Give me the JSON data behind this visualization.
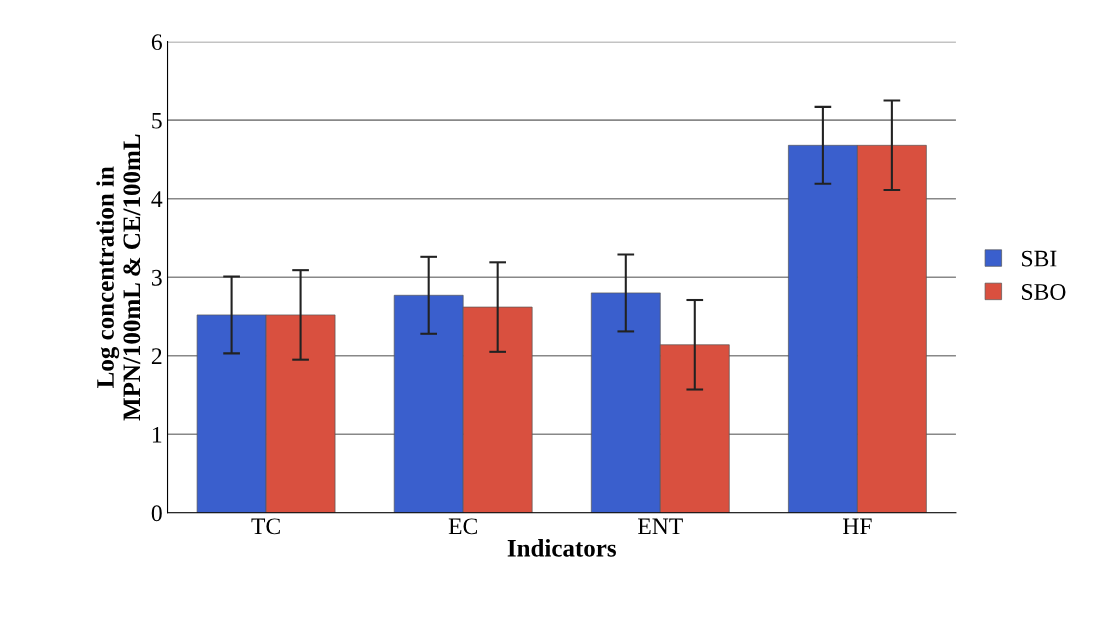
{
  "chart_data": {
    "type": "bar",
    "xlabel": "Indicators",
    "ylabel": "Log concentration in\nMPN/100mL & CE/100mL",
    "categories": [
      "TC",
      "EC",
      "ENT",
      "HF"
    ],
    "series": [
      {
        "name": "SBI",
        "color": "#3a5fcd",
        "values": [
          2.52,
          2.77,
          2.8,
          4.68
        ],
        "errors": [
          0.49,
          0.49,
          0.49,
          0.49
        ]
      },
      {
        "name": "SBO",
        "color": "#d9503f",
        "values": [
          2.52,
          2.62,
          2.14,
          4.68
        ],
        "errors": [
          0.57,
          0.57,
          0.57,
          0.57
        ]
      }
    ],
    "ylim": [
      0,
      6
    ],
    "yticks": [
      0,
      1,
      2,
      3,
      4,
      5,
      6
    ],
    "grid": "y",
    "legend": "right"
  }
}
